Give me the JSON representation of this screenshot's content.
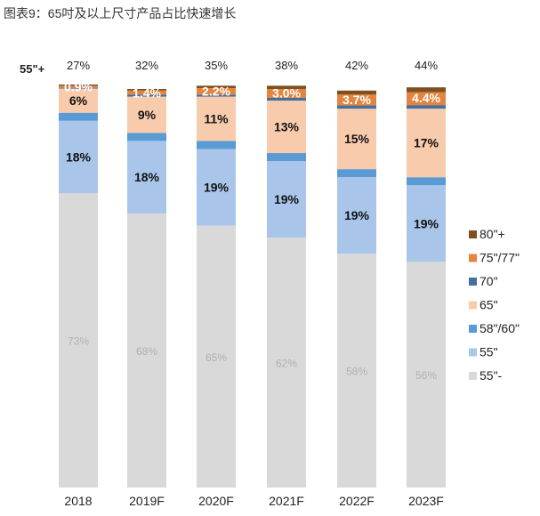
{
  "title": "图表9：65吋及以上尺寸产品占比快速增长",
  "chart_data": {
    "type": "bar",
    "stacked": true,
    "title": "",
    "total_row_label": "55\"+",
    "categories": [
      "2018",
      "2019F",
      "2020F",
      "2021F",
      "2022F",
      "2023F"
    ],
    "totals_55plus": [
      "27%",
      "32%",
      "35%",
      "38%",
      "42%",
      "44%"
    ],
    "ylim": [
      0,
      100
    ],
    "grid": false,
    "legend_position": "right",
    "series": [
      {
        "name": "55\"-",
        "color": "#d9d9d9",
        "values": [
          73,
          68,
          65,
          62,
          58,
          56
        ],
        "labels": [
          "73%",
          "68%",
          "65%",
          "62%",
          "58%",
          "56%"
        ],
        "label_color": "#b0b0b0"
      },
      {
        "name": "55\"",
        "color": "#a9c6ea",
        "values": [
          18,
          18,
          19,
          19,
          19,
          19
        ],
        "labels": [
          "18%",
          "18%",
          "19%",
          "19%",
          "19%",
          "19%"
        ],
        "label_color": "#111"
      },
      {
        "name": "58\"/60\"",
        "color": "#5b9bd5",
        "values": [
          2,
          2,
          2,
          2,
          2,
          2
        ]
      },
      {
        "name": "65\"",
        "color": "#f8cbad",
        "values": [
          6,
          9,
          11,
          13,
          15,
          17
        ],
        "labels": [
          "6%",
          "9%",
          "11%",
          "13%",
          "15%",
          "17%"
        ],
        "label_color": "#111"
      },
      {
        "name": "70\"",
        "color": "#44709d",
        "values": [
          0.2,
          0.5,
          0.5,
          0.7,
          0.8,
          0.9
        ]
      },
      {
        "name": "75\"/77\"",
        "color": "#e4853f",
        "values": [
          0.5,
          1.0,
          1.6,
          2.2,
          2.7,
          3.2
        ],
        "labels": [
          "0.9%",
          "1.4%",
          "2.2%",
          "3.0%",
          "3.7%",
          "4.4%"
        ],
        "label_color": "#fff"
      },
      {
        "name": "80\"+",
        "color": "#7f4f1f",
        "values": [
          0.3,
          0.4,
          0.6,
          0.8,
          1.0,
          1.2
        ]
      }
    ]
  }
}
